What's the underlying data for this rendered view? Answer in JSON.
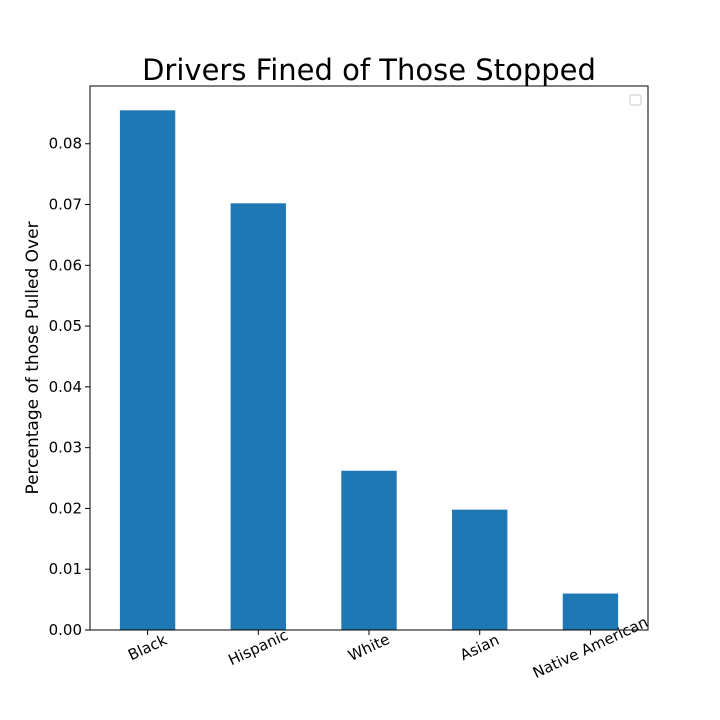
{
  "chart_data": {
    "type": "bar",
    "title": "Drivers Fined of Those Stopped",
    "xlabel": "",
    "ylabel": "Percentage of those Pulled Over",
    "categories": [
      "Black",
      "Hispanic",
      "White",
      "Asian",
      "Native American"
    ],
    "values": [
      0.0855,
      0.0702,
      0.0262,
      0.0198,
      0.006
    ],
    "ylim": [
      0,
      0.0895
    ],
    "yticks": [
      0.0,
      0.01,
      0.02,
      0.03,
      0.04,
      0.05,
      0.06,
      0.07,
      0.08
    ],
    "ytick_labels": [
      "0.00",
      "0.01",
      "0.02",
      "0.03",
      "0.04",
      "0.05",
      "0.06",
      "0.07",
      "0.08"
    ],
    "bar_color": "#1f77b4",
    "grid": false,
    "legend": {
      "placement": "top-right",
      "entries": []
    }
  }
}
